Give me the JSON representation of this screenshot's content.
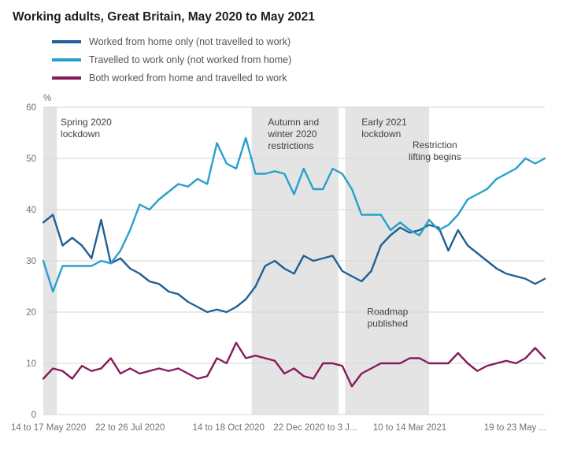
{
  "chart_data": {
    "type": "line",
    "title": "Working adults, Great Britain, May 2020 to May 2021",
    "unit_label": "%",
    "ylim": [
      0,
      60
    ],
    "yticks": [
      0,
      10,
      20,
      30,
      40,
      50,
      60
    ],
    "grid": true,
    "legend_position": "top-left",
    "colors": {
      "band": "#e4e4e4",
      "grid": "#d6d6d6",
      "axis_text": "#707070",
      "annotation_text": "#414042"
    },
    "xticks": [
      {
        "label": "14 to 17 May 2020",
        "week": 0,
        "anchor": "start"
      },
      {
        "label": "22 to 26 Jul 2020",
        "week": 9,
        "anchor": "middle"
      },
      {
        "label": "14 to 18 Oct 2020",
        "week": 19.2,
        "anchor": "middle"
      },
      {
        "label": "22 Dec 2020 to 3 J...",
        "week": 28.2,
        "anchor": "middle"
      },
      {
        "label": "10 to 14 Mar 2021",
        "week": 38,
        "anchor": "middle"
      },
      {
        "label": "19 to 23 May ...",
        "week": 52,
        "anchor": "end"
      }
    ],
    "bands": [
      {
        "label": "Spring 2020 lockdown",
        "from_week": 0,
        "to_week": 1.4
      },
      {
        "label": "Autumn and winter 2020 restrictions",
        "from_week": 21.6,
        "to_week": 30.6
      },
      {
        "label": "Early 2021 lockdown",
        "from_week": 31.3,
        "to_week": 40.0
      }
    ],
    "annotations": [
      {
        "lines": [
          "Spring 2020",
          "lockdown"
        ],
        "week": 1.8,
        "value": 56.5,
        "align": "start"
      },
      {
        "lines": [
          "Autumn and",
          "winter 2020",
          "restrictions"
        ],
        "week": 23.3,
        "value": 56.5,
        "align": "start"
      },
      {
        "lines": [
          "Early 2021",
          "lockdown"
        ],
        "week": 33.0,
        "value": 56.5,
        "align": "start"
      },
      {
        "lines": [
          "Restriction",
          "lifting begins"
        ],
        "week": 40.6,
        "value": 52,
        "align": "middle"
      },
      {
        "lines": [
          "Roadmap",
          "published"
        ],
        "week": 35.7,
        "value": 19.5,
        "align": "middle"
      }
    ],
    "series": [
      {
        "name": "Worked from home only (not travelled to work)",
        "color": "#206095",
        "values": [
          37.5,
          39,
          33,
          34.5,
          33,
          30.5,
          38,
          29.5,
          30.5,
          28.5,
          27.5,
          26,
          25.5,
          24,
          23.5,
          22,
          21,
          20,
          20.5,
          20,
          21,
          22.5,
          25,
          29,
          30,
          28.5,
          27.5,
          31,
          30,
          30.5,
          31,
          28,
          27,
          26,
          28,
          33,
          35,
          36.5,
          35.5,
          36,
          37,
          36.5,
          32,
          36,
          33,
          31.5,
          30,
          28.5,
          27.5,
          27,
          26.5,
          25.5,
          26.5
        ]
      },
      {
        "name": "Travelled to work only (not worked from home)",
        "color": "#27A0CC",
        "values": [
          30,
          24,
          29,
          29,
          29,
          29,
          30,
          29.5,
          32,
          36,
          41,
          40,
          42,
          43.5,
          45,
          44.5,
          46,
          45,
          53,
          49,
          48,
          54,
          47,
          47,
          47.5,
          47,
          43,
          48,
          44,
          44,
          48,
          47,
          44,
          39,
          39,
          39,
          36,
          37.5,
          36,
          35,
          38,
          36,
          37,
          39,
          42,
          43,
          44,
          46,
          47,
          48,
          50,
          49,
          50
        ]
      },
      {
        "name": "Both worked from home and travelled to work",
        "color": "#871A5B",
        "values": [
          7,
          9,
          8.5,
          7,
          9.5,
          8.5,
          9,
          11,
          8,
          9,
          8,
          8.5,
          9,
          8.5,
          9,
          8,
          7,
          7.5,
          11,
          10,
          14,
          11,
          11.5,
          11,
          10.5,
          8,
          9,
          7.5,
          7,
          10,
          10,
          9.5,
          5.5,
          8,
          9,
          10,
          10,
          10,
          11,
          11,
          10,
          10,
          10,
          12,
          10,
          8.5,
          9.5,
          10,
          10.5,
          10,
          11,
          13,
          11
        ]
      }
    ]
  }
}
